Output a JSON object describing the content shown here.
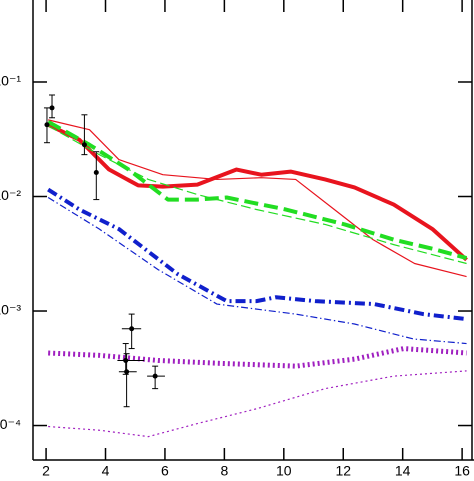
{
  "chart_data": {
    "type": "line",
    "log_y": true,
    "xlim": [
      1.56,
      16.4
    ],
    "ylim": [
      5e-05,
      0.52
    ],
    "xticks": [
      2,
      4,
      6,
      8,
      10,
      12,
      14,
      16
    ],
    "yticks": [
      {
        "value": 0.1,
        "label": "10⁻¹"
      },
      {
        "value": 0.01,
        "label": "10⁻²"
      },
      {
        "value": 0.001,
        "label": "10⁻³"
      },
      {
        "value": 0.0001,
        "label": "10⁻⁴"
      }
    ],
    "series": [
      {
        "color": "#e8141e",
        "style": "solid",
        "weight": "thick",
        "x": [
          2.07,
          3.12,
          4.12,
          5.1,
          5.93,
          7.09,
          8.41,
          9.24,
          10.23,
          11.39,
          12.38,
          13.7,
          15.0,
          16.15
        ],
        "values": [
          0.0423,
          0.0313,
          0.0172,
          0.0125,
          0.0122,
          0.0127,
          0.0172,
          0.0155,
          0.0165,
          0.0141,
          0.012,
          0.0085,
          0.0052,
          0.0028
        ]
      },
      {
        "color": "#e8141e",
        "style": "solid",
        "weight": "thin",
        "x": [
          2.07,
          3.46,
          4.45,
          5.93,
          7.75,
          9.24,
          10.4,
          11.7,
          13.0,
          14.4,
          16.15
        ],
        "values": [
          0.0467,
          0.0383,
          0.021,
          0.0155,
          0.0141,
          0.0146,
          0.0141,
          0.0077,
          0.0042,
          0.0026,
          0.002
        ]
      },
      {
        "color": "#22dd22",
        "style": "dashed",
        "weight": "thick",
        "x": [
          2.07,
          3.46,
          4.78,
          6.1,
          7.09,
          8.08,
          10.07,
          12.05,
          13.7,
          15.0,
          16.15
        ],
        "values": [
          0.0449,
          0.0283,
          0.0172,
          0.0094,
          0.0094,
          0.0098,
          0.0077,
          0.0057,
          0.0042,
          0.0035,
          0.0029
        ]
      },
      {
        "color": "#22dd22",
        "style": "dashed",
        "weight": "thin",
        "x": [
          2.07,
          3.79,
          5.44,
          7.09,
          9.08,
          11.39,
          13.7,
          16.15
        ],
        "values": [
          0.0414,
          0.0232,
          0.0141,
          0.0104,
          0.0077,
          0.0057,
          0.0038,
          0.0026
        ]
      },
      {
        "color": "#1020cc",
        "style": "dotdash",
        "weight": "thick",
        "x": [
          2.07,
          3.12,
          4.45,
          6.43,
          8.08,
          9.08,
          9.74,
          11.06,
          13.04,
          14.69,
          16.15
        ],
        "values": [
          0.0115,
          0.0077,
          0.0052,
          0.0021,
          0.00122,
          0.00122,
          0.00132,
          0.00122,
          0.00115,
          0.00094,
          0.00085
        ]
      },
      {
        "color": "#1020cc",
        "style": "dotdash",
        "weight": "thin",
        "x": [
          2.07,
          3.79,
          5.77,
          7.75,
          10.4,
          12.38,
          14.36,
          16.15
        ],
        "values": [
          0.0098,
          0.0052,
          0.0023,
          0.00115,
          0.00094,
          0.00077,
          0.00057,
          0.00052
        ]
      },
      {
        "color": "#a020c0",
        "style": "dotted",
        "weight": "thick",
        "x": [
          2.07,
          3.79,
          5.77,
          7.75,
          10.4,
          12.38,
          14.03,
          16.15
        ],
        "values": [
          0.00043,
          0.00041,
          0.00037,
          0.00035,
          0.00033,
          0.00038,
          0.00047,
          0.00043
        ]
      },
      {
        "color": "#a020c0",
        "style": "dotted",
        "weight": "thin",
        "x": [
          2.07,
          3.79,
          5.44,
          7.09,
          9.08,
          11.39,
          13.7,
          16.15
        ],
        "values": [
          9.8e-05,
          9.1e-05,
          8e-05,
          0.000104,
          0.00014,
          0.00021,
          0.00027,
          0.0003
        ]
      }
    ],
    "points": {
      "color": "#000000",
      "x": [
        2.03,
        2.2,
        3.29,
        3.69,
        4.88,
        4.68,
        4.71,
        5.67
      ],
      "values": [
        0.0423,
        0.0594,
        0.0283,
        0.0162,
        0.0007,
        0.00037,
        0.000295,
        0.00027
      ],
      "ylow": [
        0.0295,
        0.0487,
        0.0232,
        0.0094,
        0.00047,
        0.00028,
        0.000146,
        0.00021
      ],
      "yhigh": [
        0.0594,
        0.077,
        0.0517,
        0.0246,
        0.00094,
        0.00052,
        0.000424,
        0.00033
      ],
      "xlow": [
        2.03,
        2.2,
        3.29,
        3.69,
        4.55,
        4.4,
        4.45,
        5.4
      ],
      "xhigh": [
        2.03,
        2.2,
        3.29,
        3.69,
        5.2,
        5.3,
        5.05,
        6.0
      ]
    }
  }
}
